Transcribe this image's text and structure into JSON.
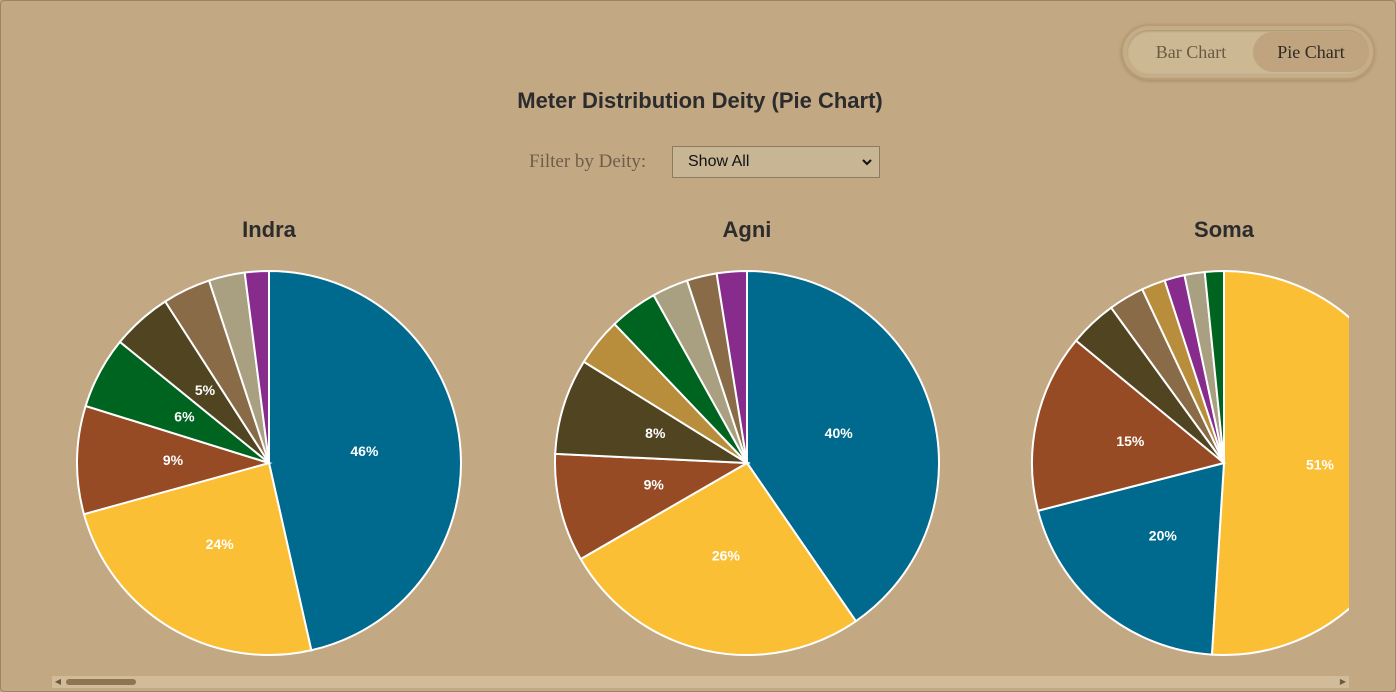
{
  "toggle": {
    "bar_label": "Bar Chart",
    "pie_label": "Pie Chart",
    "active": "pie"
  },
  "title": "Meter Distribution Deity (Pie Chart)",
  "filter": {
    "label": "Filter by Deity:",
    "selected": "Show All"
  },
  "scrollbar": {
    "left_icon": "triangle-left-icon",
    "right_icon": "triangle-right-icon"
  },
  "chart_data": [
    {
      "type": "pie",
      "title": "Indra",
      "values": [
        46,
        24,
        9,
        6,
        5,
        4,
        3,
        2
      ],
      "labels": [
        "46%",
        "24%",
        "9%",
        "6%",
        "5%",
        "",
        "",
        ""
      ],
      "colors": [
        "#006a8e",
        "#fbbf36",
        "#964b24",
        "#006421",
        "#504520",
        "#8a6b48",
        "#a8a080",
        "#872c8c"
      ]
    },
    {
      "type": "pie",
      "title": "Agni",
      "values": [
        40,
        26,
        9,
        8,
        4,
        4,
        3,
        2.5,
        2.5
      ],
      "labels": [
        "40%",
        "26%",
        "9%",
        "8%",
        "",
        "",
        "",
        "",
        ""
      ],
      "colors": [
        "#006a8e",
        "#fbbf36",
        "#964b24",
        "#504520",
        "#b88e3c",
        "#006421",
        "#a8a080",
        "#8a6b48",
        "#872c8c"
      ]
    },
    {
      "type": "pie",
      "title": "Soma",
      "values": [
        51,
        20,
        15,
        4,
        3,
        2,
        1.7,
        1.7,
        1.6
      ],
      "labels": [
        "51%",
        "20%",
        "15%",
        "",
        "",
        "",
        "",
        "",
        ""
      ],
      "colors": [
        "#fbbf36",
        "#006a8e",
        "#964b24",
        "#504520",
        "#8a6b48",
        "#b88e3c",
        "#872c8c",
        "#a8a080",
        "#006421"
      ]
    }
  ]
}
